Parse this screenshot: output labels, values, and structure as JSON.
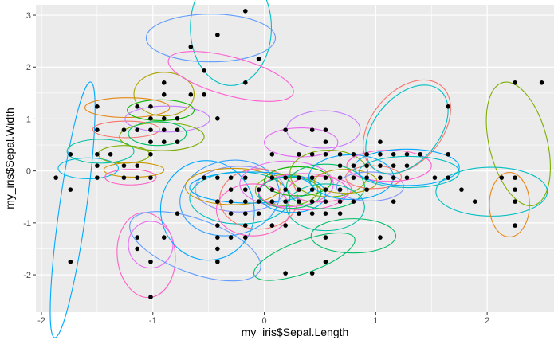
{
  "chart_data": {
    "type": "scatter",
    "xlabel": "my_iris$Sepal.Length",
    "ylabel": "my_iris$Sepal.Width",
    "xlim": [
      -2.05,
      2.6
    ],
    "ylim": [
      -2.72,
      3.2
    ],
    "x_ticks": [
      -2,
      -1,
      0,
      1,
      2
    ],
    "y_ticks": [
      -2,
      -1,
      0,
      1,
      2,
      3
    ],
    "x_tick_labels": [
      "-2",
      "-1",
      "0",
      "1",
      "2"
    ],
    "y_tick_labels": [
      "-2",
      "-1",
      "0",
      "1",
      "2",
      "3"
    ],
    "grid": true,
    "panel_color": "#ebebeb",
    "grid_color": "#ffffff",
    "point_color": "#000000",
    "points": [
      [
        -1.87,
        -0.13
      ],
      [
        -1.74,
        0.32
      ],
      [
        -1.74,
        -0.36
      ],
      [
        -1.74,
        -1.75
      ],
      [
        -1.5,
        1.24
      ],
      [
        -1.5,
        0.79
      ],
      [
        -1.5,
        0.32
      ],
      [
        -1.5,
        0.1
      ],
      [
        -1.5,
        -0.13
      ],
      [
        -1.38,
        0.32
      ],
      [
        -1.26,
        0.79
      ],
      [
        -1.26,
        0.1
      ],
      [
        -1.26,
        -0.13
      ],
      [
        -1.14,
        1.24
      ],
      [
        -1.14,
        0.79
      ],
      [
        -1.14,
        0.1
      ],
      [
        -1.14,
        -0.13
      ],
      [
        -1.14,
        -1.28
      ],
      [
        -1.14,
        -1.5
      ],
      [
        -1.02,
        1.24
      ],
      [
        -1.02,
        1.01
      ],
      [
        -1.02,
        0.79
      ],
      [
        -1.02,
        0.56
      ],
      [
        -1.02,
        0.32
      ],
      [
        -1.02,
        -0.13
      ],
      [
        -1.02,
        -1.75
      ],
      [
        -1.02,
        -2.43
      ],
      [
        -0.9,
        1.7
      ],
      [
        -0.9,
        1.47
      ],
      [
        -0.9,
        1.01
      ],
      [
        -0.9,
        0.79
      ],
      [
        -0.9,
        0.56
      ],
      [
        -0.9,
        -1.28
      ],
      [
        -0.78,
        1.01
      ],
      [
        -0.78,
        0.79
      ],
      [
        -0.78,
        0.56
      ],
      [
        -0.78,
        -0.82
      ],
      [
        -0.66,
        2.39
      ],
      [
        -0.66,
        1.47
      ],
      [
        -0.54,
        1.93
      ],
      [
        -0.54,
        1.47
      ],
      [
        -0.54,
        -0.13
      ],
      [
        -0.42,
        2.62
      ],
      [
        -0.42,
        1.01
      ],
      [
        -0.42,
        -0.13
      ],
      [
        -0.42,
        -0.59
      ],
      [
        -0.42,
        -1.05
      ],
      [
        -0.42,
        -1.28
      ],
      [
        -0.42,
        -1.5
      ],
      [
        -0.42,
        -1.75
      ],
      [
        -0.3,
        -0.13
      ],
      [
        -0.3,
        -0.36
      ],
      [
        -0.3,
        -0.59
      ],
      [
        -0.3,
        -0.82
      ],
      [
        -0.3,
        -1.28
      ],
      [
        -0.17,
        3.08
      ],
      [
        -0.17,
        1.7
      ],
      [
        -0.17,
        -0.13
      ],
      [
        -0.17,
        -0.36
      ],
      [
        -0.17,
        -0.59
      ],
      [
        -0.17,
        -0.82
      ],
      [
        -0.17,
        -1.05
      ],
      [
        -0.17,
        -1.28
      ],
      [
        -0.05,
        2.16
      ],
      [
        -0.05,
        -0.36
      ],
      [
        -0.05,
        -0.59
      ],
      [
        -0.05,
        -0.82
      ],
      [
        0.07,
        0.32
      ],
      [
        0.07,
        -0.13
      ],
      [
        0.07,
        -0.36
      ],
      [
        0.07,
        -0.59
      ],
      [
        0.07,
        -1.05
      ],
      [
        0.19,
        0.79
      ],
      [
        0.19,
        -0.13
      ],
      [
        0.19,
        -0.36
      ],
      [
        0.19,
        -0.59
      ],
      [
        0.19,
        -1.05
      ],
      [
        0.19,
        -1.97
      ],
      [
        0.31,
        0.32
      ],
      [
        0.31,
        -0.13
      ],
      [
        0.31,
        -0.36
      ],
      [
        0.31,
        -0.59
      ],
      [
        0.31,
        -0.82
      ],
      [
        0.43,
        0.79
      ],
      [
        0.43,
        0.32
      ],
      [
        0.43,
        -0.13
      ],
      [
        0.43,
        -0.36
      ],
      [
        0.43,
        -0.59
      ],
      [
        0.43,
        -0.82
      ],
      [
        0.43,
        -1.97
      ],
      [
        0.55,
        0.79
      ],
      [
        0.55,
        0.56
      ],
      [
        0.55,
        0.32
      ],
      [
        0.55,
        -0.13
      ],
      [
        0.55,
        -0.36
      ],
      [
        0.55,
        -0.59
      ],
      [
        0.55,
        -0.82
      ],
      [
        0.55,
        -1.28
      ],
      [
        0.55,
        -1.75
      ],
      [
        0.68,
        0.32
      ],
      [
        0.68,
        0.1
      ],
      [
        0.68,
        -0.13
      ],
      [
        0.68,
        -0.36
      ],
      [
        0.68,
        -0.59
      ],
      [
        0.68,
        -0.82
      ],
      [
        0.8,
        0.32
      ],
      [
        0.8,
        0.1
      ],
      [
        0.8,
        -0.13
      ],
      [
        0.8,
        -0.59
      ],
      [
        0.92,
        0.32
      ],
      [
        0.92,
        0.1
      ],
      [
        0.92,
        -0.13
      ],
      [
        0.92,
        -0.36
      ],
      [
        1.04,
        0.56
      ],
      [
        1.04,
        0.32
      ],
      [
        1.04,
        0.1
      ],
      [
        1.04,
        -0.13
      ],
      [
        1.04,
        -1.28
      ],
      [
        1.16,
        0.32
      ],
      [
        1.16,
        0.1
      ],
      [
        1.16,
        -0.13
      ],
      [
        1.16,
        -0.59
      ],
      [
        1.28,
        0.32
      ],
      [
        1.28,
        0.1
      ],
      [
        1.28,
        -0.13
      ],
      [
        1.4,
        0.32
      ],
      [
        1.53,
        -0.13
      ],
      [
        1.65,
        1.24
      ],
      [
        1.65,
        0.32
      ],
      [
        1.65,
        -0.13
      ],
      [
        1.77,
        -0.36
      ],
      [
        1.89,
        -0.59
      ],
      [
        2.13,
        -0.13
      ],
      [
        2.25,
        1.7
      ],
      [
        2.25,
        -0.13
      ],
      [
        2.25,
        -0.36
      ],
      [
        2.25,
        -0.59
      ],
      [
        2.25,
        -1.05
      ],
      [
        2.49,
        1.7
      ]
    ],
    "ellipses": [
      {
        "cx": -1.72,
        "cy": -0.75,
        "rx": 1.16,
        "ry": 0.26,
        "angle": 82,
        "color": "#00a9ff"
      },
      {
        "cx": -1.58,
        "cy": 0.05,
        "rx": 0.27,
        "ry": 0.2,
        "angle": 0,
        "color": "#00b8e7"
      },
      {
        "cx": -1.47,
        "cy": 0.38,
        "rx": 0.3,
        "ry": 0.23,
        "angle": 0,
        "color": "#00c1a3"
      },
      {
        "cx": -1.26,
        "cy": 0.32,
        "rx": 0.23,
        "ry": 0.17,
        "angle": 0,
        "color": "#7cae00"
      },
      {
        "cx": -1.23,
        "cy": 1.22,
        "rx": 0.38,
        "ry": 0.19,
        "angle": 0,
        "color": "#e68613"
      },
      {
        "cx": -1.24,
        "cy": 0.8,
        "rx": 0.3,
        "ry": 0.16,
        "angle": 0,
        "color": "#f8766d"
      },
      {
        "cx": -1.17,
        "cy": 0.02,
        "rx": 0.27,
        "ry": 0.14,
        "angle": 0,
        "color": "#cd9600"
      },
      {
        "cx": -1.2,
        "cy": -0.12,
        "rx": 0.23,
        "ry": 0.15,
        "angle": 0,
        "color": "#ff61c3"
      },
      {
        "cx": -0.9,
        "cy": 1.48,
        "rx": 0.27,
        "ry": 0.42,
        "angle": 0,
        "color": "#aba300"
      },
      {
        "cx": -0.93,
        "cy": 1.17,
        "rx": 0.3,
        "ry": 0.2,
        "angle": 0,
        "color": "#0cb702"
      },
      {
        "cx": -0.87,
        "cy": 1.0,
        "rx": 0.38,
        "ry": 0.25,
        "angle": 0,
        "color": "#c77cff"
      },
      {
        "cx": -0.92,
        "cy": 0.66,
        "rx": 0.38,
        "ry": 0.27,
        "angle": 0,
        "color": "#7cae00"
      },
      {
        "cx": -0.96,
        "cy": 0.72,
        "rx": 0.26,
        "ry": 0.23,
        "angle": 0,
        "color": "#00be67"
      },
      {
        "cx": -1.06,
        "cy": -1.62,
        "rx": 0.26,
        "ry": 0.82,
        "angle": 5,
        "color": "#ff61c3"
      },
      {
        "cx": -1.02,
        "cy": -1.42,
        "rx": 0.2,
        "ry": 0.45,
        "angle": 0,
        "color": "#e76bf3"
      },
      {
        "cx": -0.62,
        "cy": -1.45,
        "rx": 0.62,
        "ry": 0.52,
        "angle": -20,
        "color": "#619cff"
      },
      {
        "cx": -0.48,
        "cy": 2.56,
        "rx": 0.58,
        "ry": 0.46,
        "angle": 0,
        "color": "#619cff"
      },
      {
        "cx": -0.3,
        "cy": 2.76,
        "rx": 0.52,
        "ry": 0.78,
        "angle": 90,
        "color": "#00bfc4"
      },
      {
        "cx": -0.3,
        "cy": 1.82,
        "rx": 0.58,
        "ry": 0.37,
        "angle": -15,
        "color": "#fd61d1"
      },
      {
        "cx": -0.51,
        "cy": -0.76,
        "rx": 0.42,
        "ry": 0.96,
        "angle": 10,
        "color": "#00a9ff"
      },
      {
        "cx": -0.31,
        "cy": -0.52,
        "rx": 0.45,
        "ry": 0.72,
        "angle": 10,
        "color": "#35a2ff"
      },
      {
        "cx": -0.22,
        "cy": -0.52,
        "rx": 0.45,
        "ry": 0.5,
        "angle": 0,
        "color": "#00bfc4"
      },
      {
        "cx": -0.22,
        "cy": -0.35,
        "rx": 0.4,
        "ry": 0.44,
        "angle": 0,
        "color": "#8494ff"
      },
      {
        "cx": -0.05,
        "cy": -0.54,
        "rx": 0.35,
        "ry": 0.58,
        "angle": 0,
        "color": "#f8766d"
      },
      {
        "cx": -0.1,
        "cy": -0.75,
        "rx": 0.33,
        "ry": 0.5,
        "angle": 0,
        "color": "#ff61c3"
      },
      {
        "cx": -0.28,
        "cy": -0.3,
        "rx": 0.43,
        "ry": 0.35,
        "angle": 0,
        "color": "#cd9600"
      },
      {
        "cx": -0.12,
        "cy": -0.32,
        "rx": 0.55,
        "ry": 0.3,
        "angle": 0,
        "color": "#00a9ff"
      },
      {
        "cx": 0.2,
        "cy": -0.25,
        "rx": 0.42,
        "ry": 0.44,
        "angle": 0,
        "color": "#e76bf3"
      },
      {
        "cx": 0.2,
        "cy": -0.37,
        "rx": 0.28,
        "ry": 0.3,
        "angle": 0,
        "color": "#7cae00"
      },
      {
        "cx": 0.25,
        "cy": -0.45,
        "rx": 0.3,
        "ry": 0.35,
        "angle": 0,
        "color": "#00a9ff"
      },
      {
        "cx": 0.23,
        "cy": -0.42,
        "rx": 0.28,
        "ry": 0.3,
        "angle": 0,
        "color": "#00be67"
      },
      {
        "cx": 0.3,
        "cy": -0.2,
        "rx": 0.3,
        "ry": 0.28,
        "angle": 0,
        "color": "#0cb702"
      },
      {
        "cx": 0.35,
        "cy": -0.4,
        "rx": 0.4,
        "ry": 0.35,
        "angle": 0,
        "color": "#fd61d1"
      },
      {
        "cx": 0.36,
        "cy": -1.65,
        "rx": 0.48,
        "ry": 0.31,
        "angle": 20,
        "color": "#00be67"
      },
      {
        "cx": 0.53,
        "cy": 0.8,
        "rx": 0.33,
        "ry": 0.36,
        "angle": 0,
        "color": "#c77cff"
      },
      {
        "cx": 0.33,
        "cy": 0.55,
        "rx": 0.33,
        "ry": 0.28,
        "angle": 0,
        "color": "#e76bf3"
      },
      {
        "cx": 0.55,
        "cy": -0.3,
        "rx": 0.35,
        "ry": 0.43,
        "angle": 0,
        "color": "#00be67"
      },
      {
        "cx": 0.58,
        "cy": -0.05,
        "rx": 0.35,
        "ry": 0.45,
        "angle": 0,
        "color": "#7cae00"
      },
      {
        "cx": 0.55,
        "cy": -0.7,
        "rx": 0.35,
        "ry": 0.45,
        "angle": 0,
        "color": "#00c1a3"
      },
      {
        "cx": 0.5,
        "cy": -0.35,
        "rx": 0.28,
        "ry": 0.25,
        "angle": 0,
        "color": "#ff61c3"
      },
      {
        "cx": 0.73,
        "cy": -0.2,
        "rx": 0.28,
        "ry": 0.23,
        "angle": 0,
        "color": "#aba300"
      },
      {
        "cx": 0.8,
        "cy": -1.25,
        "rx": 0.38,
        "ry": 0.33,
        "angle": 0,
        "color": "#00be67"
      },
      {
        "cx": 0.78,
        "cy": -0.12,
        "rx": 0.38,
        "ry": 0.43,
        "angle": 0,
        "color": "#00a9ff"
      },
      {
        "cx": 0.95,
        "cy": -0.3,
        "rx": 0.3,
        "ry": 0.28,
        "angle": 0,
        "color": "#8494ff"
      },
      {
        "cx": 0.98,
        "cy": -0.12,
        "rx": 0.25,
        "ry": 0.22,
        "angle": 0,
        "color": "#f8766d"
      },
      {
        "cx": 1.12,
        "cy": 0.1,
        "rx": 0.38,
        "ry": 0.3,
        "angle": 0,
        "color": "#fd61d1"
      },
      {
        "cx": 1.28,
        "cy": 0.85,
        "rx": 0.48,
        "ry": 0.68,
        "angle": 50,
        "color": "#f8766d"
      },
      {
        "cx": 1.28,
        "cy": 0.8,
        "rx": 0.46,
        "ry": 0.62,
        "angle": 50,
        "color": "#00bfc4"
      },
      {
        "cx": 1.3,
        "cy": -0.02,
        "rx": 0.45,
        "ry": 0.3,
        "angle": 0,
        "color": "#00bfc4"
      },
      {
        "cx": 1.28,
        "cy": 0.07,
        "rx": 0.47,
        "ry": 0.35,
        "angle": 0,
        "color": "#00a9ff"
      },
      {
        "cx": 2.04,
        "cy": -0.4,
        "rx": 0.5,
        "ry": 0.47,
        "angle": 0,
        "color": "#00bfc4"
      },
      {
        "cx": 2.28,
        "cy": 0.52,
        "rx": 0.26,
        "ry": 1.22,
        "angle": 14,
        "color": "#7cae00"
      },
      {
        "cx": 2.2,
        "cy": -0.65,
        "rx": 0.18,
        "ry": 0.62,
        "angle": 0,
        "color": "#e68613"
      }
    ]
  }
}
